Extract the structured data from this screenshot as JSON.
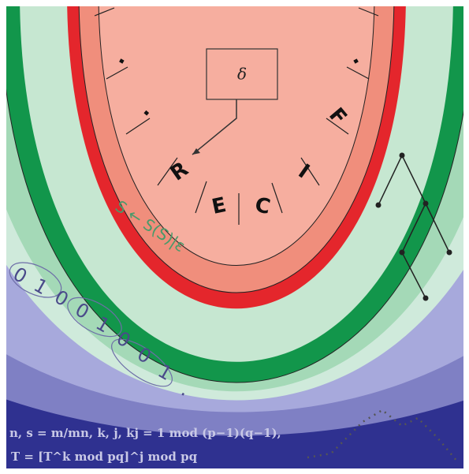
{
  "center_box": {
    "label": "δ"
  },
  "tape": {
    "cells": [
      ".",
      ".",
      "R",
      "E",
      "C",
      "I",
      "F",
      "."
    ]
  },
  "rule": "S ← S(S)|ε",
  "bits": [
    "0",
    "1",
    "0",
    "0",
    "1",
    "0",
    "0",
    "1",
    "."
  ],
  "formulas": [
    "n, s = m/mn, k, j, kj = 1  mod (p−1)(q−1),",
    "T = [T^k mod pq]^j  mod pq"
  ]
}
